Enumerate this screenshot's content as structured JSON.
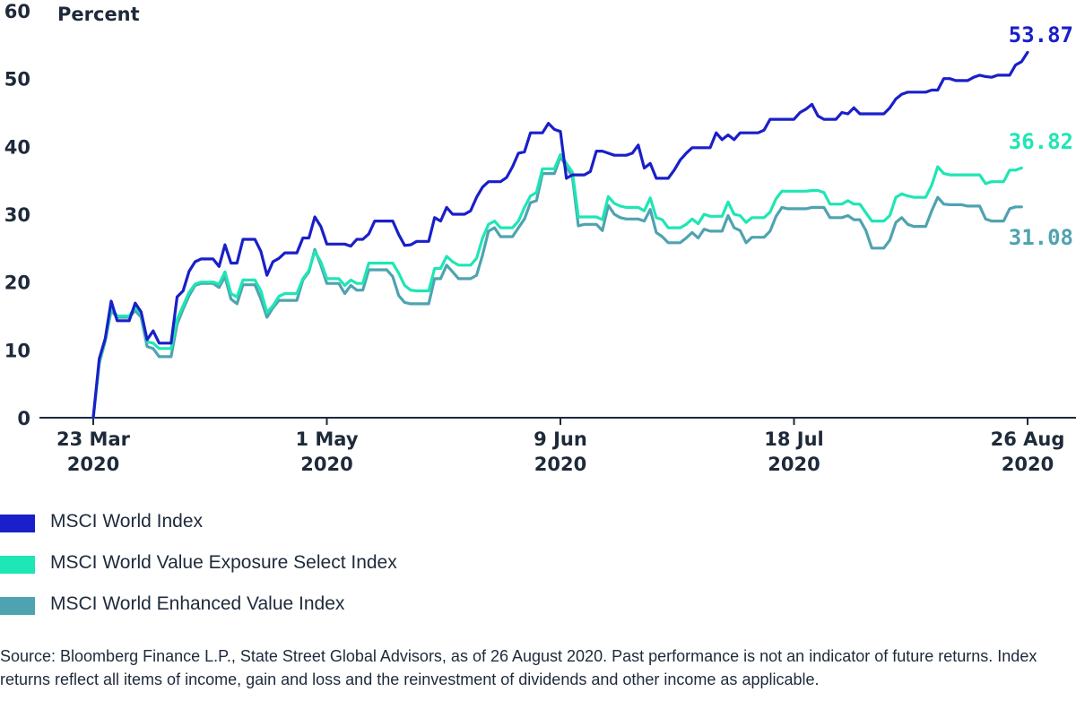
{
  "chart_data": {
    "type": "line",
    "title": "",
    "ylabel": "Percent",
    "xlabel": "",
    "ylim": [
      0,
      60
    ],
    "yticks": [
      "0",
      "10",
      "20",
      "30",
      "40",
      "50",
      "60"
    ],
    "xticks": [
      {
        "line1": "23 Mar",
        "line2": "2020",
        "index": 0
      },
      {
        "line1": "1 May",
        "line2": "2020",
        "index": 28
      },
      {
        "line1": "9 Jun",
        "line2": "2020",
        "index": 56
      },
      {
        "line1": "18 Jul",
        "line2": "2020",
        "index": 84
      },
      {
        "line1": "26 Aug",
        "line2": "2020",
        "index": 112
      }
    ],
    "series": [
      {
        "name": "MSCI World Index",
        "color": "#1a1fc9",
        "end_label": "53.87",
        "values": [
          0,
          8.7,
          11.7,
          17.2,
          14.3,
          14.3,
          14.3,
          16.9,
          15.6,
          11.5,
          12.8,
          11,
          11,
          11,
          17.8,
          18.7,
          21.6,
          23,
          23.4,
          23.4,
          23.4,
          22.3,
          25.5,
          22.8,
          22.8,
          26.3,
          26.3,
          26.3,
          24.5,
          21,
          23,
          23.5,
          24.3,
          24.3,
          24.3,
          26.5,
          26.5,
          29.6,
          28.2,
          25.6,
          25.6,
          25.6,
          25.6,
          25.3,
          26.3,
          26.3,
          27.1,
          29,
          29,
          29,
          29,
          27,
          25.4,
          25.5,
          26,
          26,
          26,
          29.5,
          29,
          31,
          30,
          30,
          30,
          30.5,
          32.5,
          34,
          34.8,
          34.8,
          34.8,
          35.4,
          37,
          39,
          39.2,
          42,
          42,
          42,
          43.4,
          42.5,
          42.2,
          35.3,
          35.8,
          35.8,
          35.8,
          36.3,
          39.3,
          39.3,
          39,
          38.7,
          38.7,
          38.7,
          39,
          40.2,
          36.8,
          37.5,
          35.3,
          35.3,
          35.3,
          36.5,
          38,
          39,
          39.8,
          39.8,
          39.8,
          39.8,
          42,
          41,
          41.7,
          41,
          42,
          42,
          42,
          42,
          42.4,
          44,
          44,
          44,
          44,
          44,
          45,
          45.5,
          46.2,
          44.5,
          44,
          44,
          44,
          45,
          44.8,
          45.7,
          44.8,
          44.8,
          44.8,
          44.8,
          44.8,
          45.7,
          47,
          47.7,
          48,
          48,
          48,
          48,
          48.3,
          48.3,
          50,
          50,
          49.7,
          49.7,
          49.7,
          50.2,
          50.5,
          50.3,
          50.2,
          50.5,
          50.5,
          50.5,
          52,
          52.5,
          53.87
        ]
      },
      {
        "name": "MSCI World Value Exposure Select Index",
        "color": "#1ee6b4",
        "end_label": "36.82",
        "values": [
          0,
          8.2,
          11.5,
          16.2,
          15,
          15,
          15,
          16.3,
          15.3,
          11.2,
          11,
          10.2,
          10.2,
          10.2,
          14.5,
          16.5,
          18.5,
          19.7,
          20,
          20,
          20,
          19.7,
          21.5,
          18.3,
          17.8,
          20.3,
          20.3,
          20.3,
          18.7,
          15.5,
          16.5,
          17.9,
          18.3,
          18.3,
          18.3,
          20.5,
          21.7,
          24.5,
          23,
          20.5,
          20.5,
          20.5,
          19.5,
          20.3,
          19.8,
          19.8,
          22.8,
          22.8,
          22.8,
          22.8,
          22.8,
          21.3,
          19.5,
          18.8,
          18.7,
          18.7,
          18.7,
          22,
          22,
          23.8,
          23,
          22.5,
          22.5,
          22.5,
          23.5,
          26.5,
          28.5,
          29,
          28,
          28,
          28,
          29,
          31,
          32.7,
          33.2,
          36.7,
          36.7,
          36.7,
          38.8,
          37.5,
          36.2,
          29.6,
          29.6,
          29.6,
          29.6,
          29.2,
          32.6,
          31.6,
          31.2,
          31,
          31,
          31,
          30.5,
          32.4,
          29.5,
          29.2,
          28,
          28,
          28,
          28.5,
          29.3,
          28.6,
          30,
          29.7,
          29.7,
          29.7,
          31.8,
          30,
          29.8,
          28.8,
          29.5,
          29.5,
          29.5,
          30.3,
          32.3,
          33.4,
          33.4,
          33.4,
          33.4,
          33.4,
          33.5,
          33.5,
          33.2,
          31.5,
          31.5,
          31.5,
          32,
          31.5,
          31.5,
          30.2,
          29,
          29,
          29,
          29.8,
          32.5,
          33,
          32.7,
          32.5,
          32.5,
          32.5,
          34.3,
          37,
          36,
          35.8,
          35.8,
          35.8,
          35.8,
          35.8,
          35.8,
          34.5,
          34.8,
          34.8,
          34.8,
          36.5,
          36.5,
          36.82
        ]
      },
      {
        "name": "MSCI World Enhanced Value Index",
        "color": "#4fa3b0",
        "end_label": "31.08",
        "values": [
          0,
          8,
          11.3,
          15.8,
          14.8,
          14.8,
          14.8,
          15.8,
          14.8,
          10.5,
          10.2,
          9,
          9,
          9,
          13.8,
          16,
          18,
          19.5,
          19.8,
          19.8,
          19.8,
          19.2,
          20.8,
          17.5,
          16.8,
          19.6,
          19.6,
          19.6,
          17.5,
          14.8,
          16.2,
          17.3,
          17.3,
          17.3,
          17.3,
          20.3,
          21.5,
          24.8,
          22.5,
          19.8,
          19.8,
          19.8,
          18.3,
          19.5,
          18.8,
          18.8,
          21.8,
          21.8,
          21.8,
          21.8,
          20.8,
          18,
          17,
          16.8,
          16.8,
          16.8,
          16.8,
          20.5,
          20.5,
          22.5,
          21.5,
          20.5,
          20.5,
          20.5,
          21,
          24,
          27.5,
          28,
          26.7,
          26.7,
          26.7,
          28,
          29.3,
          31.7,
          32,
          36,
          36,
          36,
          38.5,
          37,
          35.5,
          28.3,
          28.5,
          28.5,
          28.5,
          27.6,
          31.3,
          30,
          29.5,
          29.3,
          29.3,
          29.3,
          29,
          30.7,
          27.3,
          26.7,
          25.8,
          25.8,
          25.8,
          26.5,
          27.3,
          26.5,
          27.8,
          27.5,
          27.5,
          27.5,
          29.8,
          28,
          27.6,
          25.8,
          26.6,
          26.6,
          26.6,
          27.5,
          29.7,
          31,
          30.8,
          30.8,
          30.8,
          30.8,
          31,
          31,
          31,
          29.5,
          29.5,
          29.5,
          29.8,
          29.2,
          29.2,
          27.6,
          25,
          25,
          25,
          26.2,
          28.8,
          29.5,
          28.5,
          28.2,
          28.2,
          28.2,
          30.5,
          32.5,
          31.5,
          31.4,
          31.4,
          31.4,
          31.2,
          31.2,
          31.2,
          29.3,
          29,
          29,
          29,
          30.8,
          31.08,
          31.08
        ]
      }
    ]
  },
  "legend": [
    {
      "label": "MSCI World Index",
      "color": "#1a1fc9"
    },
    {
      "label": "MSCI World Value Exposure Select Index",
      "color": "#1ee6b4"
    },
    {
      "label": "MSCI World Enhanced Value Index",
      "color": "#4fa3b0"
    }
  ],
  "source": "Source: Bloomberg Finance L.P., State Street Global Advisors, as of 26 August 2020. Past performance is not an indicator of future returns. Index returns reflect all items of income, gain and loss and the reinvestment of dividends and other income as applicable."
}
